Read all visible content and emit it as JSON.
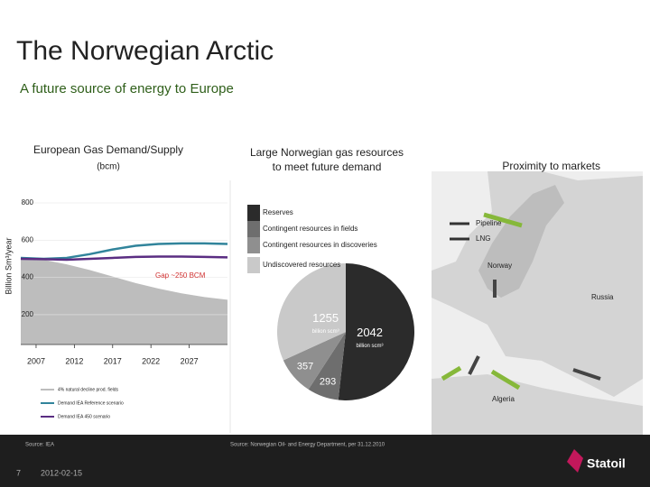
{
  "title": "The Norwegian Arctic",
  "subtitle": "A future source of energy to Europe",
  "chart_data": [
    {
      "type": "line",
      "title": "European Gas Demand/Supply",
      "subtitle": "(bcm)",
      "y_label": "Billion Sm³/year",
      "x": [
        2005,
        2008,
        2011,
        2014,
        2017,
        2020,
        2023,
        2026,
        2029,
        2032
      ],
      "xlim": [
        2005,
        2032
      ],
      "xticks": [
        2007,
        2012,
        2017,
        2022,
        2027
      ],
      "ylim": [
        40,
        800
      ],
      "yticks": [
        200,
        400,
        600,
        800
      ],
      "grid": true,
      "series": [
        {
          "name": "4% natural decline prod. fields",
          "color": "#bdbdbd",
          "fill": true,
          "values": [
            495,
            495,
            470,
            440,
            405,
            370,
            340,
            315,
            295,
            280
          ]
        },
        {
          "name": "Demand IEA Reference scenario",
          "color": "#31849b",
          "values": [
            505,
            500,
            505,
            525,
            550,
            570,
            580,
            583,
            583,
            580
          ]
        },
        {
          "name": "Demand IEA 450 scenario",
          "color": "#5a2d82",
          "values": [
            500,
            498,
            495,
            500,
            505,
            510,
            512,
            512,
            510,
            508
          ]
        }
      ],
      "annotations": [
        "Gap ~250 BCM"
      ],
      "source": "Source: IEA"
    },
    {
      "type": "pie",
      "title": "Large Norwegian gas resources to meet future demand",
      "categories": [
        "Reserves",
        "Contingent resources in fields",
        "Contingent resources in discoveries",
        "Undiscovered resources"
      ],
      "values": [
        2042,
        293,
        357,
        1255
      ],
      "colors": [
        "#2b2b2b",
        "#6e6e6e",
        "#8f8f8f",
        "#c9c9c9"
      ],
      "value_unit": "billion scm³",
      "source": "Source: Norwegian Oil- and Energy Department, per 31.12.2010"
    }
  ],
  "map": {
    "title": "Proximity to markets",
    "legend": [
      "Pipeline",
      "LNG"
    ],
    "labels": [
      "Norway",
      "Russia",
      "Algeria"
    ]
  },
  "footer": {
    "page": "7",
    "date": "2012-02-15",
    "logo": "Statoil"
  }
}
